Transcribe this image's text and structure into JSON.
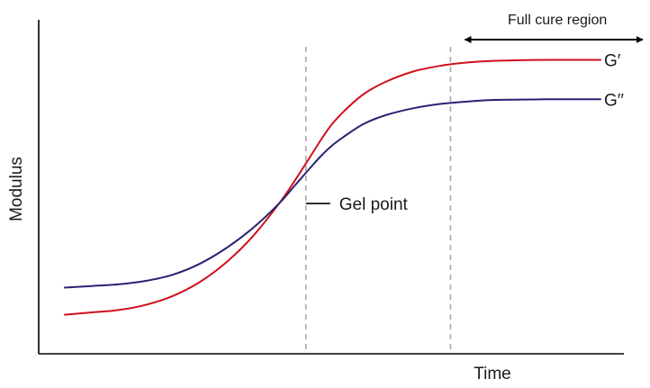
{
  "chart_data": {
    "type": "line",
    "title": "",
    "xlabel": "Time",
    "ylabel": "Modulus",
    "xlim": [
      0,
      100
    ],
    "ylim": [
      0,
      100
    ],
    "grid": false,
    "legend": "inline-right",
    "series": [
      {
        "name": "G′",
        "color": "#d0101c",
        "x": [
          0,
          5,
          10,
          15,
          20,
          25,
          30,
          35,
          40,
          43,
          46,
          48,
          50,
          53,
          56,
          60,
          65,
          70,
          75,
          80,
          85,
          90,
          95,
          100
        ],
        "y": [
          11.7,
          12.4,
          13.1,
          14.6,
          17.2,
          21.3,
          27.2,
          35.0,
          45.0,
          52.0,
          59.5,
          64.5,
          69.0,
          74.0,
          78.0,
          81.5,
          84.5,
          86.2,
          87.2,
          87.7,
          87.9,
          88.0,
          88.0,
          88.0
        ]
      },
      {
        "name": "G′′",
        "color": "#2a2273",
        "x": [
          0,
          5,
          10,
          15,
          20,
          25,
          30,
          35,
          40,
          43,
          46,
          48,
          50,
          53,
          56,
          60,
          65,
          70,
          75,
          80,
          85,
          90,
          95,
          100
        ],
        "y": [
          19.8,
          20.3,
          20.8,
          21.8,
          23.6,
          26.8,
          31.5,
          37.5,
          45.0,
          50.5,
          56.0,
          59.5,
          62.5,
          66.0,
          69.0,
          71.5,
          73.5,
          74.8,
          75.5,
          76.0,
          76.1,
          76.2,
          76.2,
          76.2
        ]
      }
    ],
    "annotations": {
      "gel_point": {
        "label": "Gel point",
        "x": 45,
        "y": 45
      },
      "full_cure": {
        "label": "Full cure region",
        "x": 72
      }
    }
  }
}
